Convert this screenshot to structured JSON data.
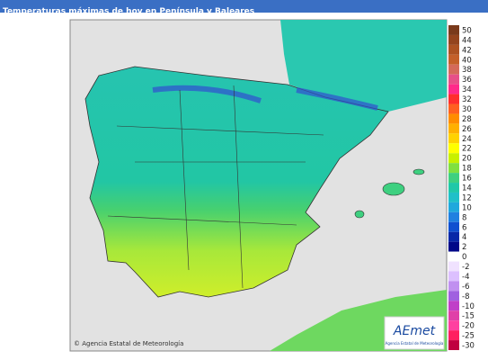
{
  "header": {
    "title": "Temperaturas máximas de hoy en Península y Baleares"
  },
  "map": {
    "credit": "© Agencia Estatal de Meteorología",
    "logo": {
      "name": "AEmet",
      "subtitle": "Agencia Estatal de Meteorología"
    }
  },
  "legend": [
    {
      "label": "50",
      "color": "#7a3a1c"
    },
    {
      "label": "44",
      "color": "#94441e"
    },
    {
      "label": "42",
      "color": "#ad5222"
    },
    {
      "label": "40",
      "color": "#c4602a"
    },
    {
      "label": "38",
      "color": "#d46a5a"
    },
    {
      "label": "36",
      "color": "#e65088"
    },
    {
      "label": "34",
      "color": "#ff2a8a"
    },
    {
      "label": "32",
      "color": "#ff2e2e"
    },
    {
      "label": "30",
      "color": "#ff6020"
    },
    {
      "label": "28",
      "color": "#ff8c00"
    },
    {
      "label": "26",
      "color": "#ffb000"
    },
    {
      "label": "24",
      "color": "#ffd200"
    },
    {
      "label": "22",
      "color": "#ffff00"
    },
    {
      "label": "20",
      "color": "#c8f000"
    },
    {
      "label": "18",
      "color": "#80e040"
    },
    {
      "label": "16",
      "color": "#3ed080"
    },
    {
      "label": "14",
      "color": "#20c8a8"
    },
    {
      "label": "12",
      "color": "#20c0c8"
    },
    {
      "label": "10",
      "color": "#20a8dc"
    },
    {
      "label": "8",
      "color": "#2080e0"
    },
    {
      "label": "6",
      "color": "#1050d0"
    },
    {
      "label": "4",
      "color": "#0828a8"
    },
    {
      "label": "2",
      "color": "#000888"
    },
    {
      "label": "0",
      "color": "#ffffff"
    },
    {
      "label": "-2",
      "color": "#f0e2ff"
    },
    {
      "label": "-4",
      "color": "#dcc0ff"
    },
    {
      "label": "-6",
      "color": "#c090f0"
    },
    {
      "label": "-8",
      "color": "#a060e0"
    },
    {
      "label": "-10",
      "color": "#c040c8"
    },
    {
      "label": "-15",
      "color": "#e040a8"
    },
    {
      "label": "-20",
      "color": "#ff40a0"
    },
    {
      "label": "-25",
      "color": "#ff2060"
    },
    {
      "label": "-30",
      "color": "#c00040"
    }
  ]
}
